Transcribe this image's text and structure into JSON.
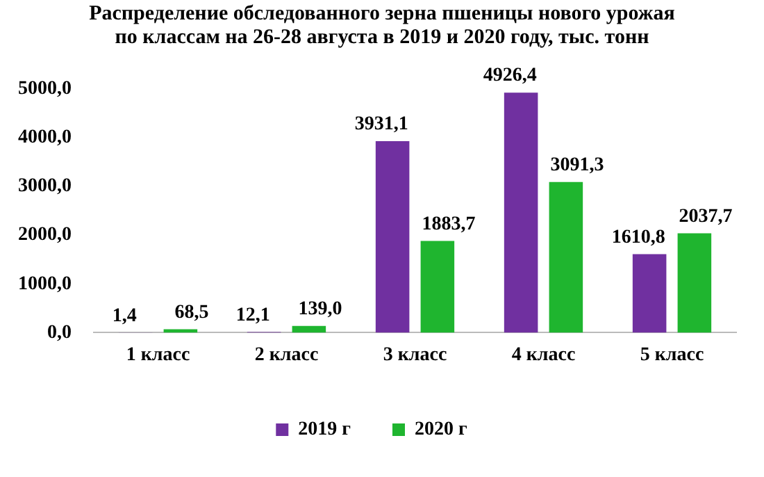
{
  "chart_data": {
    "type": "bar",
    "title": "Распределение обследованного зерна пшеницы нового урожая по классам на 26-28 августа в 2019 и 2020 году, тыс. тонн",
    "categories": [
      "1 класс",
      "2 класс",
      "3 класс",
      "4 класс",
      "5 класс"
    ],
    "series": [
      {
        "name": "2019 г",
        "color": "#7030a0",
        "values": [
          1.4,
          12.1,
          3931.1,
          4926.4,
          1610.8
        ],
        "value_labels": [
          "1,4",
          "12,1",
          "3931,1",
          "4926,4",
          "1610,8"
        ]
      },
      {
        "name": "2020 г",
        "color": "#1fb52f",
        "values": [
          68.5,
          139.0,
          1883.7,
          3091.3,
          2037.7
        ],
        "value_labels": [
          "68,5",
          "139,0",
          "1883,7",
          "3091,3",
          "2037,7"
        ]
      }
    ],
    "ylim": [
      0,
      5000
    ],
    "yticks": [
      {
        "value": 0,
        "label": "0,0"
      },
      {
        "value": 1000,
        "label": "1000,0"
      },
      {
        "value": 2000,
        "label": "2000,0"
      },
      {
        "value": 3000,
        "label": "3000,0"
      },
      {
        "value": 4000,
        "label": "4000,0"
      },
      {
        "value": 5000,
        "label": "5000,0"
      }
    ],
    "grid": false,
    "legend": "bottom"
  }
}
